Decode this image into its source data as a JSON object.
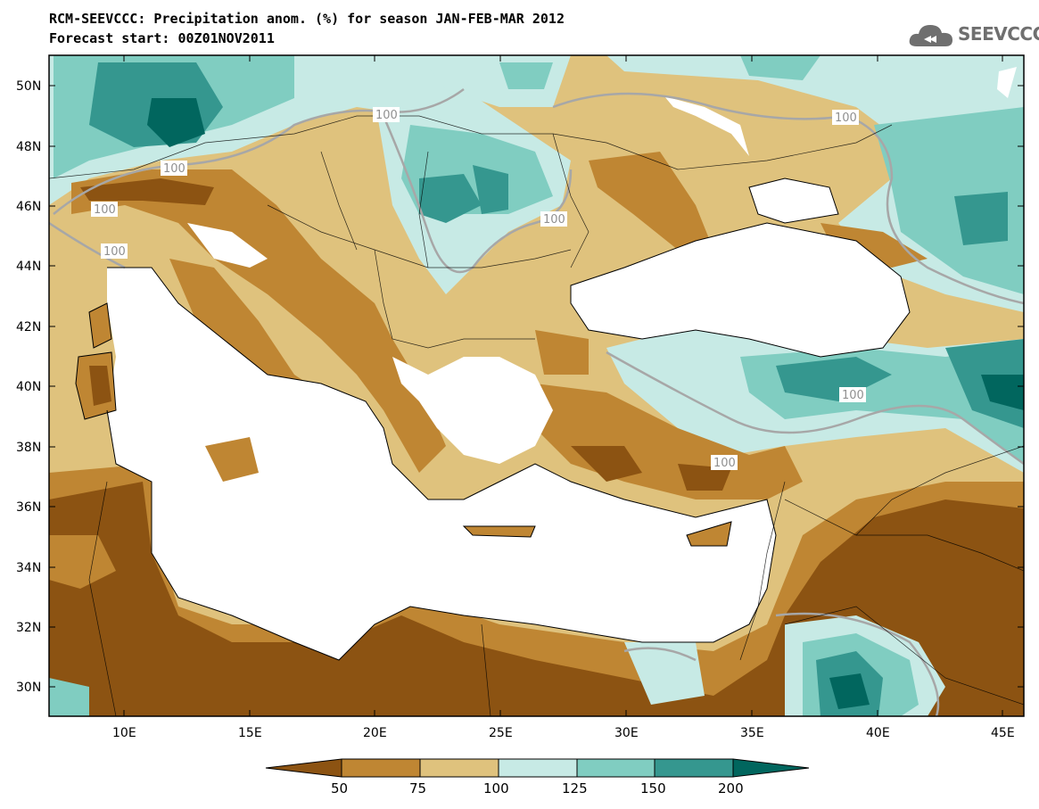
{
  "header": {
    "title": "RCM-SEEVCCC: Precipitation anom. (%) for season JAN-FEB-MAR 2012",
    "subtitle": "Forecast start: 00Z01NOV2011"
  },
  "logo": {
    "text": "SEEVCCC",
    "icon": "cloud-icon"
  },
  "axes": {
    "lat_ticks": [
      "50N",
      "48N",
      "46N",
      "44N",
      "42N",
      "40N",
      "38N",
      "36N",
      "34N",
      "32N",
      "30N"
    ],
    "lon_ticks": [
      "10E",
      "15E",
      "20E",
      "25E",
      "30E",
      "35E",
      "40E",
      "45E"
    ]
  },
  "contour_labels": [
    "100",
    "100",
    "100",
    "100",
    "100",
    "100",
    "100",
    "100"
  ],
  "legend": {
    "ticks": [
      "50",
      "75",
      "100",
      "125",
      "150",
      "200"
    ],
    "colors": [
      "#8c5312",
      "#bf8633",
      "#dfc27d",
      "#c7eae5",
      "#80cdc1",
      "#35978f",
      "#01665e"
    ]
  }
}
